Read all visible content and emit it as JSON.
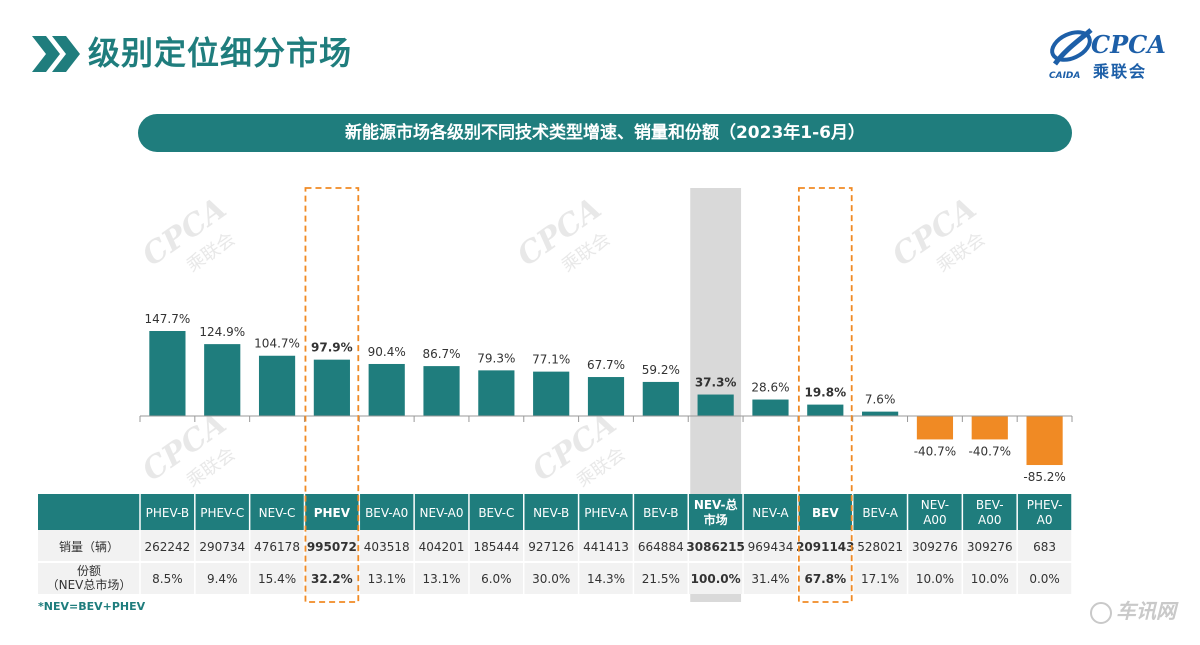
{
  "header": {
    "title": "级别定位细分市场",
    "logo_text": "CPCA",
    "logo_subtext": "乘联会",
    "logo_mark": "CAIDA"
  },
  "chart_subtitle": "新能源市场各级别不同技术类型增速、销量和份额（2023年1-6月）",
  "footnote": "*NEV=BEV+PHEV",
  "watermark": {
    "text": "CPCA",
    "subtext": "乘联会",
    "corner_text": "车讯网",
    "corner_url": "chexun.com"
  },
  "colors": {
    "positive": "#1f7d7d",
    "negative": "#f08a24",
    "header_bg": "#1f7d7d",
    "highlight_border": "#f08a24",
    "total_bg": "#d9d9d9"
  },
  "table": {
    "row_labels": [
      "销量（辆）",
      "份额\n（NEV总市场）"
    ]
  },
  "chart_data": {
    "type": "bar",
    "title": "新能源市场各级别不同技术类型增速、销量和份额（2023年1-6月）",
    "categories": [
      "PHEV-B",
      "PHEV-C",
      "NEV-C",
      "PHEV",
      "BEV-A0",
      "NEV-A0",
      "BEV-C",
      "NEV-B",
      "PHEV-A",
      "BEV-B",
      "NEV-总\n市场",
      "NEV-A",
      "BEV",
      "BEV-A",
      "NEV-\nA00",
      "BEV-\nA00",
      "PHEV-\nA0"
    ],
    "growth": [
      147.7,
      124.9,
      104.7,
      97.9,
      90.4,
      86.7,
      79.3,
      77.1,
      67.7,
      59.2,
      37.3,
      28.6,
      19.8,
      7.6,
      -40.7,
      -40.7,
      -85.2
    ],
    "growth_labels": [
      "147.7%",
      "124.9%",
      "104.7%",
      "97.9%",
      "90.4%",
      "86.7%",
      "79.3%",
      "77.1%",
      "67.7%",
      "59.2%",
      "37.3%",
      "28.6%",
      "19.8%",
      "7.6%",
      "-40.7%",
      "-40.7%",
      "-85.2%"
    ],
    "sales": [
      "262242",
      "290734",
      "476178",
      "995072",
      "403518",
      "404201",
      "185444",
      "927126",
      "441413",
      "664884",
      "3086215",
      "969434",
      "2091143",
      "528021",
      "309276",
      "309276",
      "683"
    ],
    "share": [
      "8.5%",
      "9.4%",
      "15.4%",
      "32.2%",
      "13.1%",
      "13.1%",
      "6.0%",
      "30.0%",
      "14.3%",
      "21.5%",
      "100.0%",
      "31.4%",
      "67.8%",
      "17.1%",
      "10.0%",
      "10.0%",
      "0.0%"
    ],
    "bold_indices": [
      3,
      10,
      12
    ],
    "highlight_dashed_indices": [
      3,
      12
    ],
    "highlight_total_index": 10,
    "ylim": [
      -90,
      150
    ],
    "grid": false,
    "legend": "none"
  }
}
